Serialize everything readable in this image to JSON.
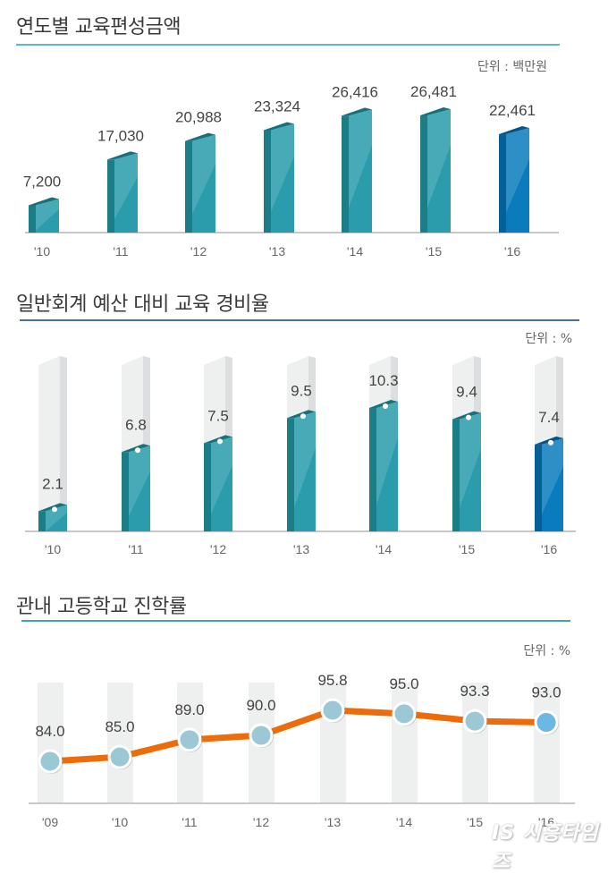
{
  "colors": {
    "teal_front": "#2a9cab",
    "teal_side": "#1b7d87",
    "teal_top": "#17707a",
    "blue_front": "#0a7bbd",
    "blue_side": "#05609a",
    "blue_top": "#045489",
    "ghost": "#eeefef",
    "ghost_side": "#dcdedf",
    "line": "#ec6c0b",
    "marker": "#9cc8d6",
    "marker_last": "#6cb8e4",
    "rule1": "#5bbcc3",
    "rule2": "#4a6fa0",
    "rule3": "#3aa4bd",
    "axis": "#c8c8c8"
  },
  "watermark": "IS 시흥타임즈",
  "chart_data": [
    {
      "type": "bar",
      "title": "연도별 교육편성금액",
      "unit_label": "단위 : 백만원",
      "categories": [
        "'10",
        "'11",
        "'12",
        "'13",
        "'14",
        "'15",
        "'16"
      ],
      "values": [
        7200,
        17030,
        20988,
        23324,
        26416,
        26481,
        22461
      ],
      "labels": [
        "7,200",
        "17,030",
        "20,988",
        "23,324",
        "26,416",
        "26,481",
        "22,461"
      ],
      "ylim": [
        0,
        30000
      ],
      "highlight_last": true,
      "grid": false
    },
    {
      "type": "bar",
      "title": "일반회계 예산 대비 교육 경비율",
      "unit_label": "단위 : %",
      "categories": [
        "'10",
        "'11",
        "'12",
        "'13",
        "'14",
        "'15",
        "'16"
      ],
      "values": [
        2.1,
        6.8,
        7.5,
        9.5,
        10.3,
        9.4,
        7.4
      ],
      "labels": [
        "2.1",
        "6.8",
        "7.5",
        "9.5",
        "10.3",
        "9.4",
        "7.4"
      ],
      "ylim": [
        0,
        13
      ],
      "highlight_last": true,
      "grid": false
    },
    {
      "type": "line",
      "title": "관내 고등학교 진학률",
      "unit_label": "단위 : %",
      "categories": [
        "'09",
        "'10",
        "'11",
        "'12",
        "'13",
        "'14",
        "'15",
        "'16"
      ],
      "values": [
        84.0,
        85.0,
        89.0,
        90.0,
        95.8,
        95.0,
        93.3,
        93.0
      ],
      "labels": [
        "84.0",
        "85.0",
        "89.0",
        "90.0",
        "95.8",
        "95.0",
        "93.3",
        "93.0"
      ],
      "ylim": [
        75,
        100
      ],
      "highlight_last": true,
      "grid": false
    }
  ]
}
